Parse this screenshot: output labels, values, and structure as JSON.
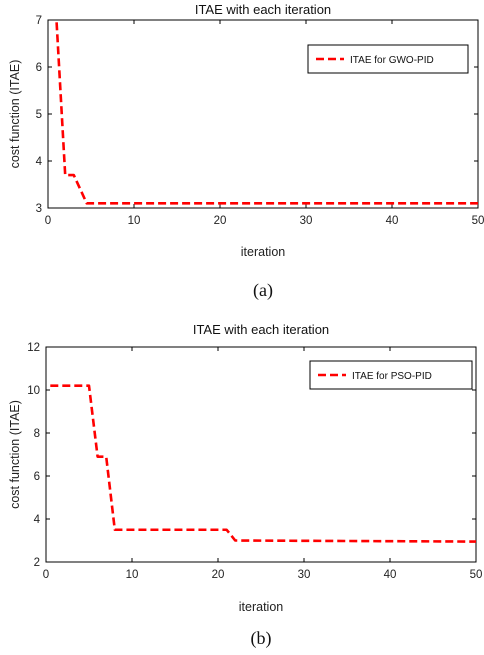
{
  "chart_data": [
    {
      "type": "line",
      "title": "ITAE with each iteration",
      "xlabel": "iteration",
      "ylabel": "cost function (ITAE)",
      "xlim": [
        0,
        50
      ],
      "ylim": [
        3,
        7
      ],
      "xticks": [
        0,
        10,
        20,
        30,
        40,
        50
      ],
      "yticks": [
        3,
        4,
        5,
        6,
        7
      ],
      "grid": false,
      "legend_position": "top-right",
      "caption": "(a)",
      "series": [
        {
          "name": "ITAE for GWO-PID",
          "color": "#ff0000",
          "style": "dashed",
          "x": [
            1,
            2,
            2.2,
            3,
            4.5,
            50
          ],
          "y": [
            6.95,
            3.7,
            3.7,
            3.7,
            3.1,
            3.1
          ]
        }
      ]
    },
    {
      "type": "line",
      "title": "ITAE with each iteration",
      "xlabel": "iteration",
      "ylabel": "cost function (ITAE)",
      "xlim": [
        0,
        50
      ],
      "ylim": [
        2,
        12
      ],
      "xticks": [
        0,
        10,
        20,
        30,
        40,
        50
      ],
      "yticks": [
        2,
        4,
        6,
        8,
        10,
        12
      ],
      "grid": false,
      "legend_position": "top-right",
      "caption": "(b)",
      "series": [
        {
          "name": "ITAE for PSO-PID",
          "color": "#ff0000",
          "style": "dashed",
          "x": [
            0.5,
            5,
            6,
            6.6,
            7,
            8,
            21,
            22,
            50
          ],
          "y": [
            10.2,
            10.2,
            6.9,
            6.9,
            6.9,
            3.5,
            3.5,
            3.0,
            2.95
          ]
        }
      ]
    }
  ]
}
